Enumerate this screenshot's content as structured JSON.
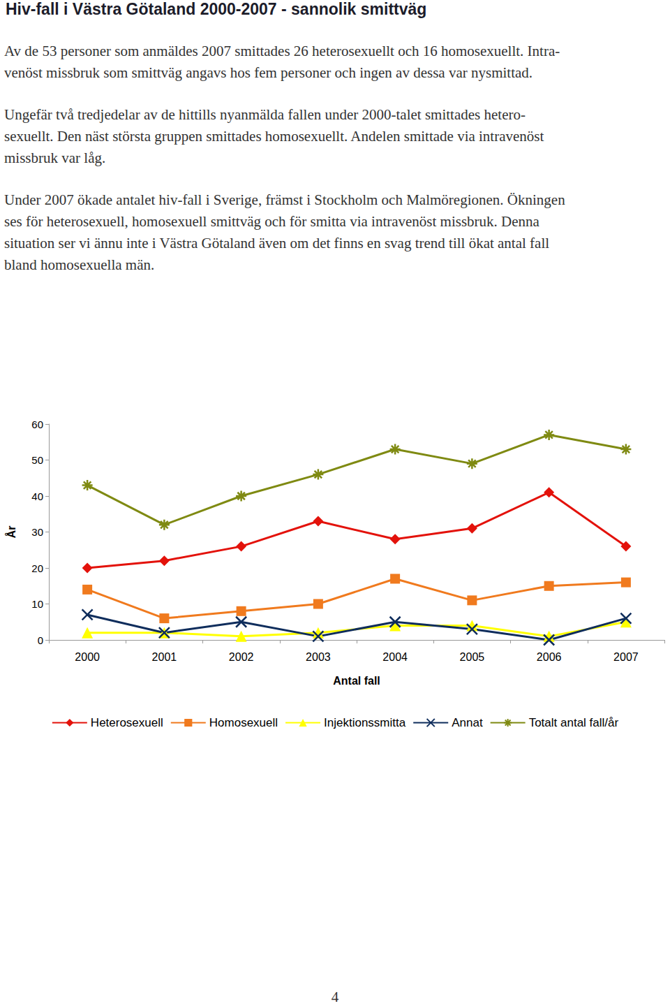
{
  "header": {
    "title": "Hiv-fall i Västra Götaland 2000-2007 - sannolik smittväg"
  },
  "paragraphs": [
    [
      "Av de 53 personer som anmäldes 2007 smittades 26 heterosexuellt och 16 homosexuellt. Intra-",
      "venöst missbruk som smittväg angavs hos fem personer och ingen av dessa var nysmittad."
    ],
    [
      "Ungefär två tredjedelar av de hittills nyanmälda fallen under 2000-talet smittades hetero-",
      "sexuellt. Den näst största gruppen smittades homosexuellt. Andelen smittade via intravenöst",
      "missbruk var låg."
    ],
    [
      "Under 2007 ökade antalet hiv-fall i Sverige, främst i Stockholm och Malmöregionen. Ökningen",
      "ses för heterosexuell, homosexuell smittväg och för smitta via intravenöst missbruk. Denna",
      "situation ser vi ännu inte i Västra Götaland även om det finns en svag trend till ökat antal fall",
      "bland homosexuella män."
    ]
  ],
  "chart_data": {
    "type": "line",
    "x_label": "Antal fall",
    "y_label": "År",
    "categories": [
      "2000",
      "2001",
      "2002",
      "2003",
      "2004",
      "2005",
      "2006",
      "2007"
    ],
    "series": [
      {
        "name": "Heterosexuell",
        "color": "#e3120b",
        "marker": "diamond",
        "values": [
          20,
          22,
          26,
          33,
          28,
          31,
          41,
          26
        ]
      },
      {
        "name": "Homosexuell",
        "color": "#f07a1e",
        "marker": "square",
        "values": [
          14,
          6,
          8,
          10,
          17,
          11,
          15,
          16
        ]
      },
      {
        "name": "Injektionssmitta",
        "color": "#ffff00",
        "marker": "triangle",
        "values": [
          2,
          2,
          1,
          2,
          4,
          4,
          1,
          5
        ]
      },
      {
        "name": "Annat",
        "color": "#0f2d5c",
        "marker": "x",
        "values": [
          7,
          2,
          5,
          1,
          5,
          3,
          0,
          6
        ]
      },
      {
        "name": "Totalt antal fall/år",
        "color": "#7f8a12",
        "marker": "asterisk",
        "values": [
          43,
          32,
          40,
          46,
          53,
          49,
          57,
          53
        ]
      }
    ],
    "ylim": [
      0,
      60
    ],
    "yticks": [
      0,
      10,
      20,
      30,
      40,
      50,
      60
    ],
    "grid": false,
    "legend": "bottom"
  },
  "page_number": 4
}
